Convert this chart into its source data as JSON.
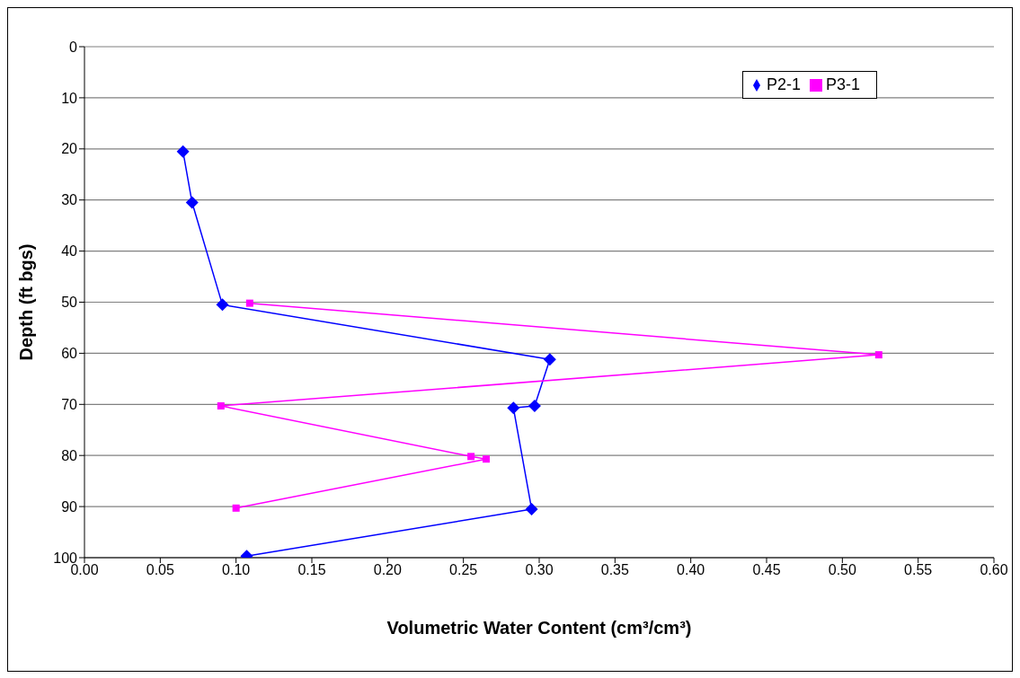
{
  "chart_data": {
    "type": "line",
    "xlabel": "Volumetric Water Content (cm³/cm³)",
    "ylabel": "Depth (ft bgs)",
    "xlim": [
      0,
      0.6
    ],
    "xticks": [
      {
        "value": 0,
        "label": "0.00"
      },
      {
        "value": 0.05,
        "label": "0.05"
      },
      {
        "value": 0.1,
        "label": "0.10"
      },
      {
        "value": 0.15,
        "label": "0.15"
      },
      {
        "value": 0.2,
        "label": "0.20"
      },
      {
        "value": 0.25,
        "label": "0.25"
      },
      {
        "value": 0.3,
        "label": "0.30"
      },
      {
        "value": 0.35,
        "label": "0.35"
      },
      {
        "value": 0.4,
        "label": "0.40"
      },
      {
        "value": 0.45,
        "label": "0.45"
      },
      {
        "value": 0.5,
        "label": "0.50"
      },
      {
        "value": 0.55,
        "label": "0.55"
      },
      {
        "value": 0.6,
        "label": "0.60"
      }
    ],
    "ylim": [
      100,
      0
    ],
    "yticks": [
      0,
      10,
      20,
      30,
      40,
      50,
      60,
      70,
      80,
      90,
      100
    ],
    "grid": "y",
    "legend": "top right",
    "series": [
      {
        "name": "P2-1",
        "color": "#0000ff",
        "marker": "diamond",
        "x": [
          0.065,
          0.071,
          0.091,
          0.307,
          0.297,
          0.283,
          0.295,
          0.107
        ],
        "values": [
          20.5,
          30.5,
          50.5,
          61.2,
          70.3,
          70.7,
          90.5,
          99.7
        ]
      },
      {
        "name": "P3-1",
        "color": "#ff00ff",
        "marker": "square",
        "x": [
          0.109,
          0.524,
          0.09,
          0.255,
          0.265,
          0.1
        ],
        "values": [
          50.2,
          60.3,
          70.3,
          80.2,
          80.7,
          90.3
        ]
      }
    ]
  }
}
